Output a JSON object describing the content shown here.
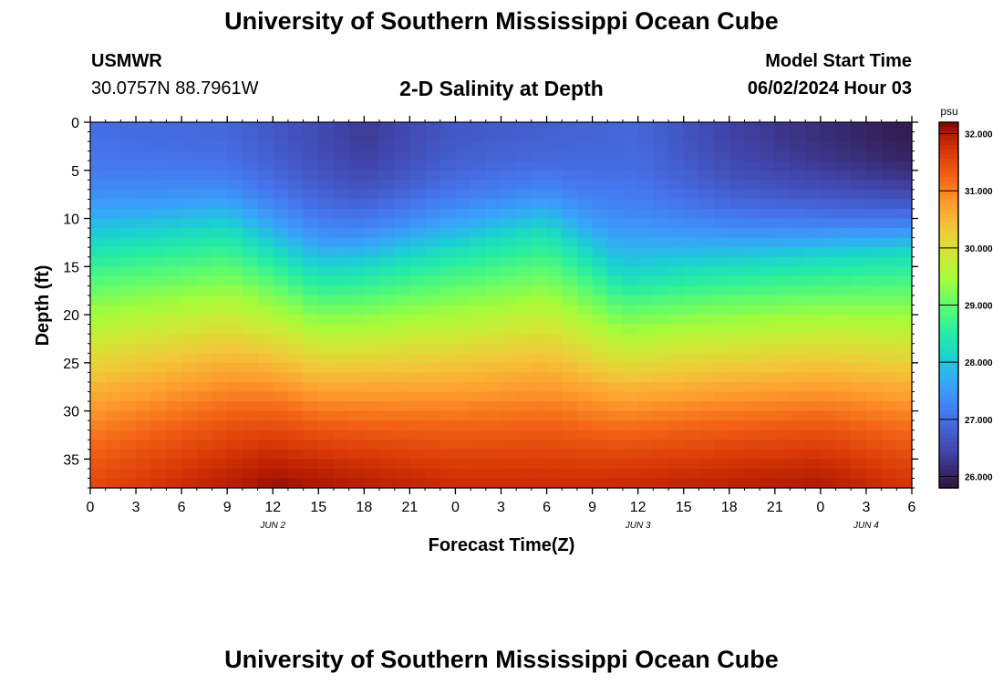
{
  "header": {
    "title": "University of Southern Mississippi Ocean Cube",
    "station": "USMWR",
    "coordinates": "30.0757N  88.7961W",
    "chart_title": "2-D Salinity at Depth",
    "model_start_label": "Model Start Time",
    "model_start_value": "06/02/2024 Hour 03"
  },
  "footer": {
    "title": "University of Southern Mississippi Ocean Cube"
  },
  "chart_data": {
    "type": "heatmap",
    "title": "2-D Salinity at Depth",
    "xlabel": "Forecast Time(Z)",
    "ylabel": "Depth (ft)",
    "x_tick_labels": [
      "0",
      "3",
      "6",
      "9",
      "12",
      "15",
      "18",
      "21",
      "0",
      "3",
      "6",
      "9",
      "12",
      "15",
      "18",
      "21",
      "0",
      "3",
      "6"
    ],
    "x_hours": [
      0,
      3,
      6,
      9,
      12,
      15,
      18,
      21,
      24,
      27,
      30,
      33,
      36,
      39,
      42,
      45,
      48,
      51,
      54
    ],
    "date_labels": [
      {
        "label": "JUN 2",
        "hour": 12
      },
      {
        "label": "JUN 3",
        "hour": 36
      },
      {
        "label": "JUN 4",
        "hour": 51
      }
    ],
    "xlim": [
      0,
      54
    ],
    "ylim": [
      0,
      38
    ],
    "y_axis_inverted": true,
    "y_ticks": [
      0,
      5,
      10,
      15,
      20,
      25,
      30,
      35
    ],
    "colorbar": {
      "unit": "psu",
      "range": [
        25.8,
        32.2
      ],
      "ticks": [
        26,
        27,
        28,
        29,
        30,
        31,
        32
      ],
      "tick_labels": [
        "26.000",
        "27.000",
        "28.000",
        "29.000",
        "30.000",
        "31.000",
        "32.000"
      ]
    },
    "grid": false,
    "halocline_depth_ft": [
      {
        "hour": 0,
        "depth": 12.5
      },
      {
        "hour": 9,
        "depth": 11
      },
      {
        "hour": 15,
        "depth": 15.5
      },
      {
        "hour": 18,
        "depth": 15
      },
      {
        "hour": 21,
        "depth": 14
      },
      {
        "hour": 30,
        "depth": 11
      },
      {
        "hour": 35,
        "depth": 16
      },
      {
        "hour": 40,
        "depth": 15
      },
      {
        "hour": 54,
        "depth": 13.5
      }
    ],
    "surface_salinity_psu": [
      {
        "hour": 0,
        "value": 27.0
      },
      {
        "hour": 9,
        "value": 26.9
      },
      {
        "hour": 18,
        "value": 26.3
      },
      {
        "hour": 24,
        "value": 26.7
      },
      {
        "hour": 36,
        "value": 26.9
      },
      {
        "hour": 42,
        "value": 26.4
      },
      {
        "hour": 54,
        "value": 25.9
      }
    ],
    "bottom_salinity_psu": [
      {
        "hour": 0,
        "value": 31.5
      },
      {
        "hour": 12,
        "value": 32.1
      },
      {
        "hour": 24,
        "value": 31.8
      },
      {
        "hour": 33,
        "value": 31.8
      },
      {
        "hour": 48,
        "value": 32.0
      },
      {
        "hour": 54,
        "value": 31.7
      }
    ]
  }
}
